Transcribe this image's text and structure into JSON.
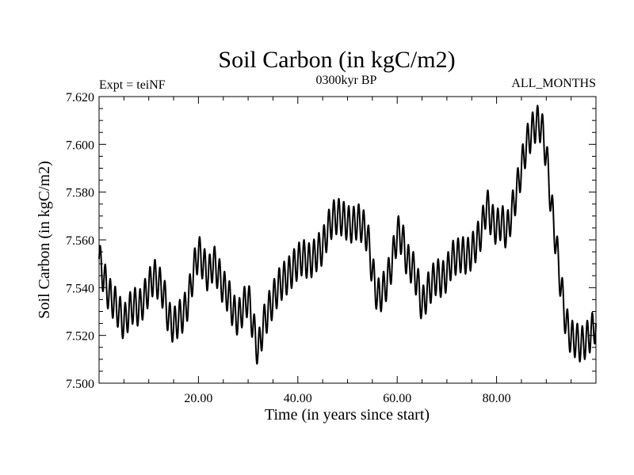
{
  "chart_data": {
    "type": "line",
    "title": "Soil Carbon (in kgC/m2)",
    "subtitle_left": "Expt = teiNF",
    "subtitle_center": "0300kyr BP",
    "subtitle_right": "ALL_MONTHS",
    "xlabel": "Time (in years since start)",
    "ylabel": "Soil Carbon (in kgC/m2)",
    "xlim": [
      0,
      100
    ],
    "ylim": [
      7.5,
      7.62
    ],
    "x_ticks": [
      {
        "value": 20,
        "label": "20.00"
      },
      {
        "value": 40,
        "label": "40.00"
      },
      {
        "value": 60,
        "label": "60.00"
      },
      {
        "value": 80,
        "label": "80.00"
      }
    ],
    "y_ticks": [
      {
        "value": 7.5,
        "label": "7.500"
      },
      {
        "value": 7.52,
        "label": "7.520"
      },
      {
        "value": 7.54,
        "label": "7.540"
      },
      {
        "value": 7.56,
        "label": "7.560"
      },
      {
        "value": 7.58,
        "label": "7.580"
      },
      {
        "value": 7.6,
        "label": "7.600"
      },
      {
        "value": 7.62,
        "label": "7.620"
      }
    ],
    "series": [
      {
        "name": "Soil Carbon",
        "color": "#000000",
        "seasonal_amplitude": 0.0075,
        "seasonal_period": 1,
        "x": [
          0,
          1,
          2,
          3,
          4,
          5,
          6,
          7,
          8,
          9,
          10,
          11,
          12,
          13,
          14,
          15,
          16,
          17,
          18,
          19,
          20,
          21,
          22,
          23,
          24,
          25,
          26,
          27,
          28,
          29,
          30,
          31,
          32,
          33,
          34,
          35,
          36,
          37,
          38,
          39,
          40,
          41,
          42,
          43,
          44,
          45,
          46,
          47,
          48,
          49,
          50,
          51,
          52,
          53,
          54,
          55,
          56,
          57,
          58,
          59,
          60,
          61,
          62,
          63,
          64,
          65,
          66,
          67,
          68,
          69,
          70,
          71,
          72,
          73,
          74,
          75,
          76,
          77,
          78,
          79,
          80,
          81,
          82,
          83,
          84,
          85,
          86,
          87,
          88,
          89,
          90,
          91,
          92,
          93,
          94,
          95,
          96,
          97,
          98,
          99,
          100
        ],
        "y": [
          7.552,
          7.544,
          7.537,
          7.534,
          7.53,
          7.525,
          7.53,
          7.533,
          7.531,
          7.535,
          7.54,
          7.545,
          7.542,
          7.538,
          7.527,
          7.524,
          7.527,
          7.529,
          7.535,
          7.547,
          7.555,
          7.55,
          7.545,
          7.551,
          7.546,
          7.54,
          7.537,
          7.53,
          7.527,
          7.532,
          7.536,
          7.524,
          7.513,
          7.524,
          7.53,
          7.535,
          7.54,
          7.543,
          7.545,
          7.548,
          7.551,
          7.553,
          7.551,
          7.552,
          7.555,
          7.557,
          7.564,
          7.569,
          7.57,
          7.569,
          7.567,
          7.566,
          7.568,
          7.566,
          7.562,
          7.547,
          7.536,
          7.538,
          7.543,
          7.551,
          7.563,
          7.561,
          7.551,
          7.549,
          7.543,
          7.532,
          7.538,
          7.542,
          7.545,
          7.543,
          7.546,
          7.552,
          7.553,
          7.554,
          7.553,
          7.555,
          7.559,
          7.564,
          7.575,
          7.568,
          7.565,
          7.568,
          7.563,
          7.571,
          7.58,
          7.59,
          7.6,
          7.605,
          7.609,
          7.608,
          7.596,
          7.575,
          7.558,
          7.54,
          7.525,
          7.519,
          7.518,
          7.516,
          7.518,
          7.521,
          7.525
        ]
      }
    ]
  }
}
